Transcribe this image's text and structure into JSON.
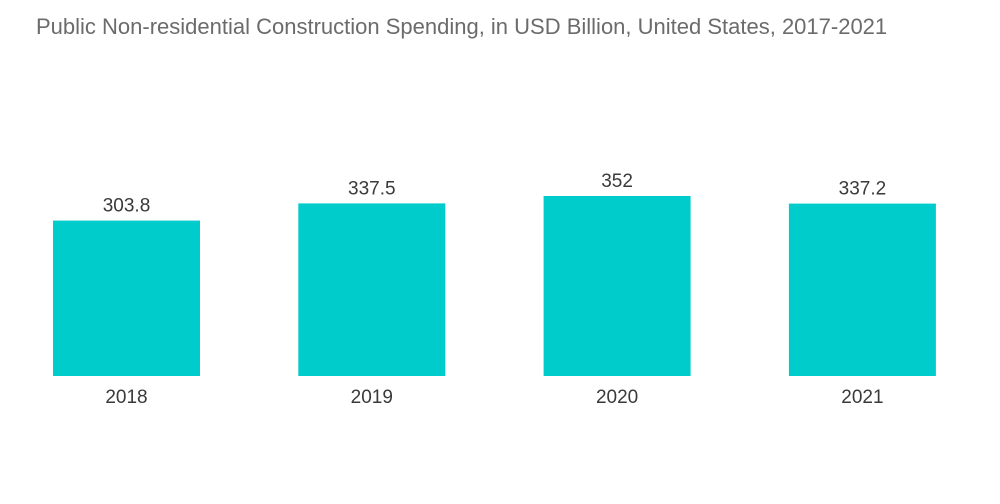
{
  "chart_data": {
    "type": "bar",
    "title": "Public Non-residential Construction Spending, in USD Billion, United States, 2017-2021",
    "categories": [
      "2018",
      "2019",
      "2020",
      "2021"
    ],
    "values": [
      303.8,
      337.5,
      352,
      337.2
    ],
    "value_labels": [
      "303.8",
      "337.5",
      "352",
      "337.2"
    ],
    "xlabel": "",
    "ylabel": "",
    "grid": false,
    "legend": "none",
    "bar_color": "#00cccc"
  }
}
